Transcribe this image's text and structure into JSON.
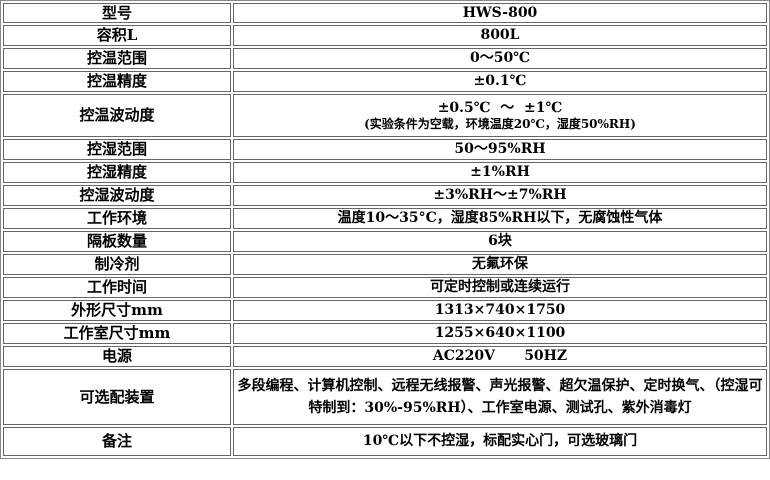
{
  "rows": [
    {
      "label": "型号",
      "value": "HWS-800"
    },
    {
      "label": "容积L",
      "value": "800L"
    },
    {
      "label": "控温范围",
      "value": "0～50℃"
    },
    {
      "label": "控温精度",
      "value": "±0.1℃"
    },
    {
      "label": "控温波动度",
      "value": "±0.5℃  ～  ±1℃",
      "note": "(实验条件为空载，环境温度20℃，湿度50%RH)"
    },
    {
      "label": "控湿范围",
      "value": "50～95%RH"
    },
    {
      "label": "控湿精度",
      "value": "±1%RH"
    },
    {
      "label": "控湿波动度",
      "value": "±3%RH～±7%RH"
    },
    {
      "label": "工作环境",
      "value": "温度10～35°C，湿度85%RH以下，无腐蚀性气体"
    },
    {
      "label": "隔板数量",
      "value": "6块"
    },
    {
      "label": "制冷剂",
      "value": "无氟环保"
    },
    {
      "label": "工作时间",
      "value": "可定时控制或连续运行"
    },
    {
      "label": "外形尺寸mm",
      "value": "1313×740×1750"
    },
    {
      "label": "工作室尺寸mm",
      "value": "1255×640×1100"
    },
    {
      "label": "电源",
      "value": "AC220V      50HZ"
    },
    {
      "label": "可选配装置",
      "value": "多段编程、计算机控制、远程无线报警、声光报警、超欠温保护、定时换气、（控湿可特制到：30%-95%RH）、工作室电源、测试孔、紫外消毒灯"
    },
    {
      "label": "备注",
      "value": "10℃以下不控湿，标配实心门，可选玻璃门"
    }
  ]
}
